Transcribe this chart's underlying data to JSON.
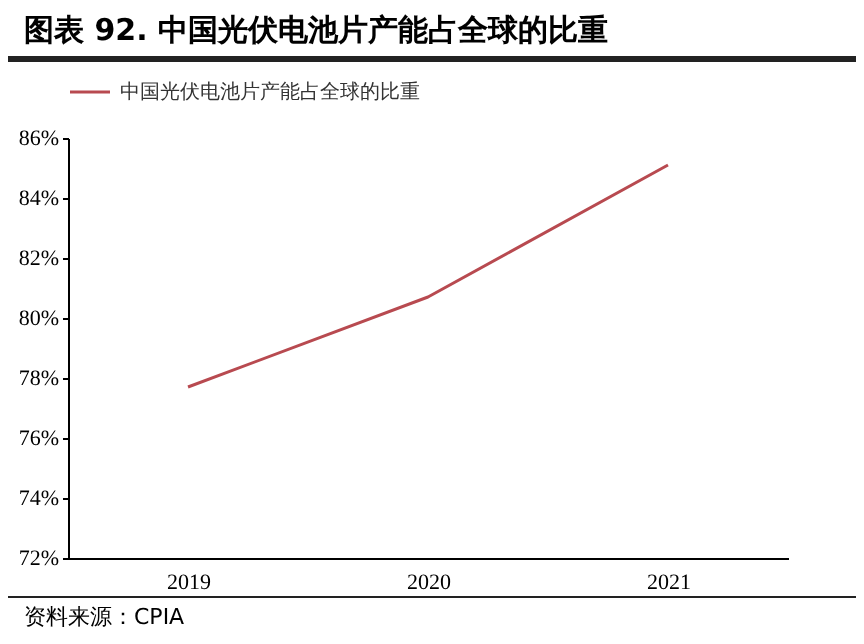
{
  "chart_data": {
    "type": "line",
    "title": "图表 92. 中国光伏电池片产能占全球的比重",
    "categories": [
      "2019",
      "2020",
      "2021"
    ],
    "series": [
      {
        "name": "中国光伏电池片产能占全球的比重",
        "color": "#b84a50",
        "values": [
          77.7,
          80.7,
          85.1
        ]
      }
    ],
    "ylim": [
      72,
      86
    ],
    "yticks": [
      {
        "value": 72,
        "label": "72%"
      },
      {
        "value": 74,
        "label": "74%"
      },
      {
        "value": 76,
        "label": "76%"
      },
      {
        "value": 78,
        "label": "78%"
      },
      {
        "value": 80,
        "label": "80%"
      },
      {
        "value": 82,
        "label": "82%"
      },
      {
        "value": 84,
        "label": "84%"
      },
      {
        "value": 86,
        "label": "86%"
      }
    ],
    "grid": false,
    "legend": "top",
    "marker": "none",
    "line_style": "solid",
    "annotations": [
      "资料来源：CPIA"
    ]
  }
}
